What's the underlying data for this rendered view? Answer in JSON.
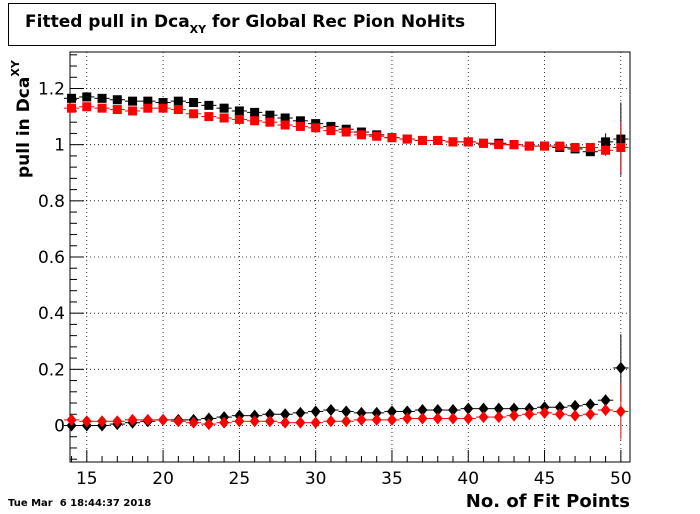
{
  "title": {
    "main": "Fitted pull in Dca",
    "subscript": "XY",
    "rest": " for Global Rec Pion NoHits"
  },
  "stamp": "Tue Mar  6 18:44:37 2018",
  "colors": {
    "black": "#000000",
    "red": "#ff0000",
    "grid": "#000000"
  },
  "chart_data": {
    "type": "scatter",
    "title": "Fitted pull in Dca_XY for Global Rec Pion NoHits",
    "xlabel": "No. of Fit Points",
    "ylabel_main": "pull in Dca",
    "ylabel_sub": "XY",
    "xlim": [
      13.9,
      50.6
    ],
    "ylim": [
      -0.13,
      1.33
    ],
    "xticks": [
      15,
      20,
      25,
      30,
      35,
      40,
      45,
      50
    ],
    "xtick_labels": [
      "15",
      "20",
      "25",
      "30",
      "35",
      "40",
      "45",
      "50"
    ],
    "yticks": [
      0,
      0.2,
      0.4,
      0.6,
      0.8,
      1,
      1.2
    ],
    "ytick_labels": [
      "0",
      "0.2",
      "0.4",
      "0.6",
      "0.8",
      "1",
      "1.2"
    ],
    "grid": true,
    "x": [
      14,
      15,
      16,
      17,
      18,
      19,
      20,
      21,
      22,
      23,
      24,
      25,
      26,
      27,
      28,
      29,
      30,
      31,
      32,
      33,
      34,
      35,
      36,
      37,
      38,
      39,
      40,
      41,
      42,
      43,
      44,
      45,
      46,
      47,
      48,
      49,
      50
    ],
    "series": [
      {
        "marker": "square",
        "color": "#000000",
        "values": [
          1.165,
          1.17,
          1.165,
          1.16,
          1.155,
          1.155,
          1.15,
          1.155,
          1.15,
          1.14,
          1.13,
          1.12,
          1.115,
          1.105,
          1.095,
          1.085,
          1.075,
          1.065,
          1.055,
          1.045,
          1.035,
          1.025,
          1.02,
          1.015,
          1.015,
          1.01,
          1.01,
          1.005,
          1.005,
          1.0,
          0.995,
          0.995,
          0.99,
          0.985,
          0.975,
          1.01,
          1.02
        ],
        "errors": [
          0.01,
          0.01,
          0.01,
          0.01,
          0.01,
          0.01,
          0.01,
          0.01,
          0.01,
          0.01,
          0.01,
          0.01,
          0.01,
          0.01,
          0.01,
          0.01,
          0.01,
          0.01,
          0.01,
          0.01,
          0.01,
          0.01,
          0.01,
          0.01,
          0.01,
          0.01,
          0.01,
          0.01,
          0.01,
          0.01,
          0.01,
          0.01,
          0.01,
          0.01,
          0.015,
          0.03,
          0.13
        ]
      },
      {
        "marker": "square",
        "color": "#ff0000",
        "values": [
          1.13,
          1.135,
          1.13,
          1.125,
          1.12,
          1.13,
          1.13,
          1.125,
          1.11,
          1.1,
          1.095,
          1.09,
          1.085,
          1.08,
          1.07,
          1.065,
          1.06,
          1.05,
          1.045,
          1.035,
          1.03,
          1.025,
          1.02,
          1.015,
          1.015,
          1.01,
          1.01,
          1.005,
          1.0,
          1.0,
          0.995,
          0.995,
          0.995,
          0.99,
          0.99,
          0.98,
          0.99
        ],
        "errors": [
          0.01,
          0.01,
          0.01,
          0.01,
          0.01,
          0.01,
          0.01,
          0.01,
          0.01,
          0.01,
          0.01,
          0.01,
          0.01,
          0.01,
          0.01,
          0.01,
          0.01,
          0.01,
          0.01,
          0.01,
          0.01,
          0.01,
          0.01,
          0.01,
          0.01,
          0.01,
          0.01,
          0.01,
          0.01,
          0.01,
          0.01,
          0.01,
          0.01,
          0.01,
          0.015,
          0.02,
          0.09
        ]
      },
      {
        "marker": "diamond",
        "color": "#000000",
        "values": [
          0.0,
          0.0,
          0.0,
          0.005,
          0.01,
          0.015,
          0.02,
          0.02,
          0.02,
          0.025,
          0.03,
          0.035,
          0.035,
          0.04,
          0.04,
          0.045,
          0.05,
          0.055,
          0.05,
          0.045,
          0.045,
          0.05,
          0.05,
          0.055,
          0.055,
          0.055,
          0.06,
          0.06,
          0.06,
          0.06,
          0.06,
          0.065,
          0.065,
          0.07,
          0.075,
          0.09,
          0.205
        ],
        "errors": [
          0.005,
          0.005,
          0.005,
          0.005,
          0.005,
          0.005,
          0.005,
          0.005,
          0.005,
          0.005,
          0.005,
          0.005,
          0.005,
          0.005,
          0.005,
          0.005,
          0.005,
          0.005,
          0.005,
          0.005,
          0.005,
          0.005,
          0.005,
          0.005,
          0.005,
          0.005,
          0.005,
          0.005,
          0.005,
          0.005,
          0.005,
          0.005,
          0.005,
          0.005,
          0.008,
          0.02,
          0.12
        ]
      },
      {
        "marker": "diamond",
        "color": "#ff0000",
        "values": [
          0.02,
          0.015,
          0.015,
          0.015,
          0.02,
          0.02,
          0.02,
          0.015,
          0.01,
          0.005,
          0.01,
          0.015,
          0.015,
          0.015,
          0.01,
          0.01,
          0.01,
          0.015,
          0.015,
          0.02,
          0.02,
          0.02,
          0.025,
          0.025,
          0.025,
          0.025,
          0.025,
          0.03,
          0.03,
          0.035,
          0.04,
          0.045,
          0.04,
          0.035,
          0.04,
          0.055,
          0.05
        ],
        "errors": [
          0.005,
          0.005,
          0.005,
          0.005,
          0.005,
          0.005,
          0.005,
          0.005,
          0.005,
          0.005,
          0.005,
          0.005,
          0.005,
          0.005,
          0.005,
          0.005,
          0.005,
          0.005,
          0.005,
          0.005,
          0.005,
          0.005,
          0.005,
          0.005,
          0.005,
          0.005,
          0.005,
          0.005,
          0.005,
          0.005,
          0.005,
          0.005,
          0.005,
          0.005,
          0.008,
          0.02,
          0.1
        ]
      }
    ]
  }
}
